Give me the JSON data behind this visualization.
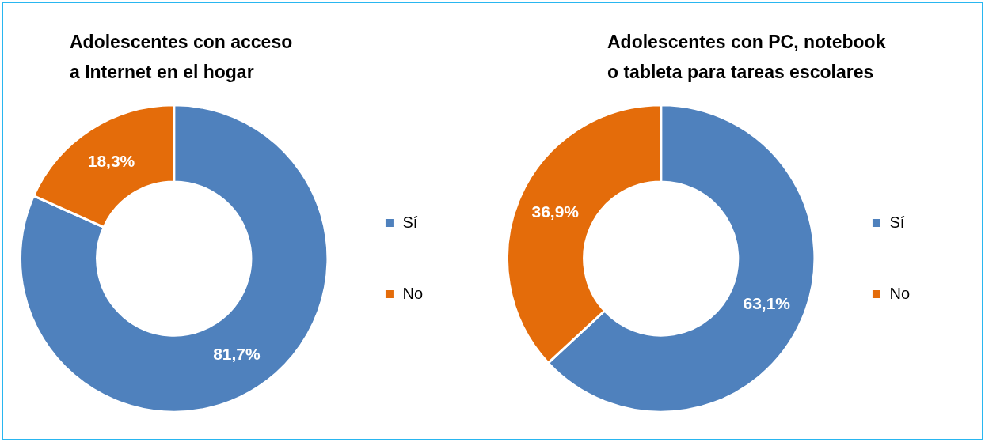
{
  "chart_data": [
    {
      "type": "donut",
      "title": "Adolescentes con acceso\na Internet en el hogar",
      "categories": [
        "Sí",
        "No"
      ],
      "values": [
        81.7,
        18.3
      ],
      "colors": [
        "#4f81bd",
        "#e46c0a"
      ],
      "value_labels": [
        "81,7%",
        "18,3%"
      ],
      "legend": "right"
    },
    {
      "type": "donut",
      "title": "Adolescentes con PC, notebook\no tableta para tareas escolares",
      "categories": [
        "Sí",
        "No"
      ],
      "values": [
        63.1,
        36.9
      ],
      "colors": [
        "#4f81bd",
        "#e46c0a"
      ],
      "value_labels": [
        "63,1%",
        "36,9%"
      ],
      "legend": "right"
    }
  ]
}
